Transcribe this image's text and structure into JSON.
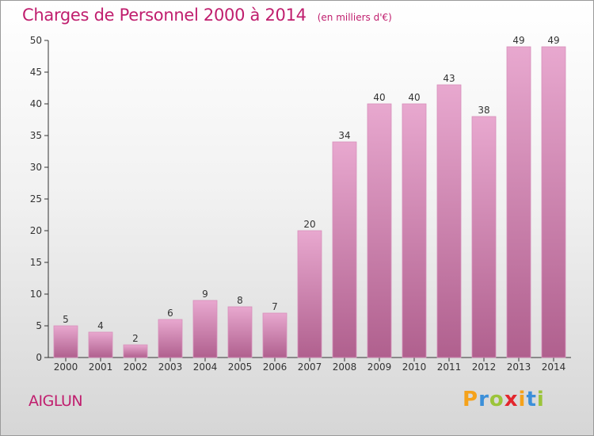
{
  "title": "Charges de Personnel 2000 à 2014",
  "subtitle": "(en milliers d'€)",
  "commune": "AIGLUN",
  "logo": {
    "letters": [
      "P",
      "r",
      "o",
      "x",
      "i",
      "t",
      "i"
    ],
    "colors": [
      "#f5a21b",
      "#3b8fd9",
      "#9bc43a",
      "#e3262d",
      "#f5a21b",
      "#3b8fd9",
      "#9bc43a"
    ]
  },
  "colors": {
    "title": "#c01e6e",
    "bar_top": "#e8a8cf",
    "bar_bottom": "#b0608e",
    "axis": "#333333"
  },
  "chart_data": {
    "type": "bar",
    "categories": [
      "2000",
      "2001",
      "2002",
      "2003",
      "2004",
      "2005",
      "2006",
      "2007",
      "2008",
      "2009",
      "2010",
      "2011",
      "2012",
      "2013",
      "2014"
    ],
    "values": [
      5,
      4,
      2,
      6,
      9,
      8,
      7,
      20,
      34,
      40,
      40,
      43,
      38,
      49,
      49
    ],
    "data_labels": [
      "5",
      "4",
      "2",
      "6",
      "9",
      "8",
      "7",
      "20",
      "34",
      "40",
      "40",
      "43",
      "38",
      "49",
      "49"
    ],
    "ylim": [
      0,
      50
    ],
    "yticks": [
      0,
      5,
      10,
      15,
      20,
      25,
      30,
      35,
      40,
      45,
      50
    ],
    "grid": false,
    "xlabel": "",
    "ylabel": ""
  }
}
